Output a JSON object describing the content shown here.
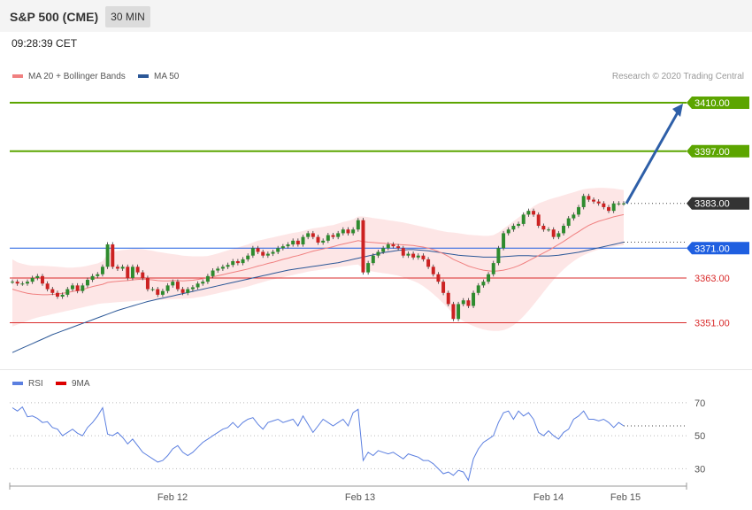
{
  "header": {
    "title": "S&P 500 (CME)",
    "timeframe": "30 MIN"
  },
  "timestamp": "09:28:39 CET",
  "legend": {
    "ma20_label": "MA 20 + Bollinger Bands",
    "ma50_label": "MA 50",
    "rsi_label": "RSI",
    "ma9_label": "9MA"
  },
  "copyright": "Research © 2020 Trading Central",
  "colors": {
    "ma20": "#f08080",
    "ma50": "#2b5797",
    "band_fill": "#fde2e2",
    "up": "#2e8b2e",
    "down": "#cc2222",
    "target": "#5ca500",
    "pivot": "#1f5fe0",
    "support": "#d92b2b",
    "current": "#333333",
    "rsi": "#5b7fe0",
    "rsi_ma": "#dd0000",
    "arrow": "#2e5fa8"
  },
  "chart_data": [
    {
      "type": "candlestick",
      "title": "S&P 500 (CME)",
      "interval": "30 MIN",
      "x_tick_labels": [
        "Feb 12",
        "Feb 13",
        "Feb 14",
        "Feb 15"
      ],
      "ylim": [
        3339,
        3415
      ],
      "levels": [
        {
          "value": 3410.0,
          "label": "3410.00",
          "role": "target"
        },
        {
          "value": 3397.0,
          "label": "3397.00",
          "role": "target"
        },
        {
          "value": 3383.0,
          "label": "3383.00",
          "role": "last"
        },
        {
          "value": 3371.0,
          "label": "3371.00",
          "role": "pivot"
        },
        {
          "value": 3363.0,
          "label": "3363.00",
          "role": "support"
        },
        {
          "value": 3351.0,
          "label": "3351.00",
          "role": "support"
        }
      ],
      "closes": [
        3362.0,
        3361.5,
        3361.5,
        3362.0,
        3363.0,
        3363.5,
        3361.5,
        3360.0,
        3359.0,
        3358.0,
        3358.5,
        3360.0,
        3361.0,
        3359.5,
        3361.0,
        3362.5,
        3363.5,
        3364.0,
        3366.0,
        3372.0,
        3366.0,
        3365.5,
        3366.0,
        3363.0,
        3366.0,
        3364.5,
        3363.0,
        3360.0,
        3360.0,
        3358.5,
        3359.5,
        3361.0,
        3362.0,
        3360.0,
        3359.0,
        3360.0,
        3360.5,
        3361.5,
        3362.0,
        3363.5,
        3365.0,
        3365.5,
        3366.0,
        3366.5,
        3367.5,
        3367.0,
        3368.0,
        3369.0,
        3371.0,
        3370.0,
        3369.0,
        3369.5,
        3370.0,
        3371.0,
        3371.5,
        3372.0,
        3373.0,
        3372.0,
        3374.0,
        3375.0,
        3374.0,
        3372.5,
        3373.0,
        3374.5,
        3374.0,
        3375.0,
        3376.0,
        3375.0,
        3376.0,
        3378.5,
        3364.5,
        3367.0,
        3369.0,
        3370.0,
        3371.0,
        3372.0,
        3371.5,
        3371.0,
        3369.0,
        3369.5,
        3368.5,
        3369.0,
        3368.0,
        3366.0,
        3364.0,
        3362.0,
        3359.0,
        3356.0,
        3352.0,
        3356.0,
        3357.0,
        3355.5,
        3359.0,
        3361.0,
        3362.0,
        3364.0,
        3367.0,
        3371.0,
        3375.0,
        3376.0,
        3377.0,
        3377.5,
        3380.0,
        3381.0,
        3380.0,
        3377.0,
        3376.0,
        3376.0,
        3374.0,
        3375.0,
        3377.0,
        3379.0,
        3380.0,
        3382.0,
        3385.0,
        3384.0,
        3383.5,
        3383.0,
        3382.0,
        3381.0,
        3383.0,
        3383.0,
        3383.0
      ],
      "ma20": [
        3360.0,
        3359.6,
        3359.2,
        3358.9,
        3358.7,
        3358.6,
        3358.5,
        3358.5,
        3358.6,
        3358.7,
        3358.9,
        3359.1,
        3359.4,
        3359.6,
        3359.9,
        3360.3,
        3360.7,
        3361.0,
        3361.3,
        3361.8,
        3362.0,
        3362.1,
        3362.2,
        3362.3,
        3362.5,
        3362.6,
        3362.7,
        3362.6,
        3362.5,
        3362.3,
        3362.2,
        3362.2,
        3362.3,
        3362.3,
        3362.2,
        3362.3,
        3362.4,
        3362.6,
        3362.8,
        3363.0,
        3363.3,
        3363.6,
        3363.9,
        3364.2,
        3364.5,
        3364.8,
        3365.1,
        3365.4,
        3365.8,
        3366.2,
        3366.5,
        3366.9,
        3367.2,
        3367.6,
        3368.0,
        3368.3,
        3368.7,
        3369.0,
        3369.4,
        3369.8,
        3370.2,
        3370.5,
        3370.8,
        3371.1,
        3371.4,
        3371.8,
        3372.1,
        3372.4,
        3372.7,
        3373.0,
        3372.8,
        3372.6,
        3372.5,
        3372.4,
        3372.3,
        3372.2,
        3372.1,
        3372.0,
        3371.9,
        3371.8,
        3371.7,
        3371.5,
        3371.3,
        3371.0,
        3370.6,
        3370.1,
        3369.5,
        3368.8,
        3368.0,
        3367.4,
        3366.8,
        3366.2,
        3365.8,
        3365.4,
        3365.1,
        3364.9,
        3364.8,
        3364.9,
        3365.1,
        3365.4,
        3365.8,
        3366.3,
        3366.9,
        3367.6,
        3368.3,
        3369.0,
        3369.7,
        3370.4,
        3371.2,
        3372.0,
        3372.8,
        3373.7,
        3374.6,
        3375.4,
        3376.3,
        3377.1,
        3377.7,
        3378.2,
        3378.6,
        3379.0,
        3379.4,
        3379.7,
        3380.0
      ],
      "band_upper": [
        3368.0,
        3367.2,
        3366.8,
        3366.5,
        3366.3,
        3366.3,
        3366.3,
        3366.2,
        3366.1,
        3366.0,
        3365.9,
        3365.8,
        3365.8,
        3365.9,
        3366.0,
        3366.3,
        3366.6,
        3366.9,
        3367.5,
        3369.5,
        3370.0,
        3370.3,
        3370.5,
        3370.6,
        3370.8,
        3370.8,
        3370.7,
        3370.5,
        3370.3,
        3370.0,
        3369.8,
        3369.6,
        3369.4,
        3369.2,
        3369.0,
        3368.9,
        3368.8,
        3368.8,
        3368.8,
        3368.9,
        3369.2,
        3369.6,
        3370.0,
        3370.4,
        3370.8,
        3371.2,
        3371.6,
        3372.0,
        3372.5,
        3373.0,
        3373.3,
        3373.6,
        3373.9,
        3374.2,
        3374.5,
        3374.8,
        3375.1,
        3375.3,
        3375.6,
        3376.0,
        3376.3,
        3376.5,
        3376.7,
        3377.0,
        3377.2,
        3377.6,
        3378.0,
        3378.3,
        3378.7,
        3379.5,
        3379.5,
        3379.3,
        3379.1,
        3378.9,
        3378.7,
        3378.5,
        3378.3,
        3378.1,
        3377.9,
        3377.6,
        3377.3,
        3377.0,
        3376.7,
        3376.4,
        3376.1,
        3375.8,
        3375.5,
        3375.3,
        3375.2,
        3375.0,
        3374.8,
        3374.6,
        3374.5,
        3374.4,
        3374.3,
        3374.3,
        3374.5,
        3375.2,
        3376.2,
        3377.2,
        3378.2,
        3379.2,
        3380.2,
        3381.2,
        3382.2,
        3383.0,
        3383.5,
        3384.0,
        3384.4,
        3384.8,
        3385.2,
        3385.6,
        3386.0,
        3386.4,
        3386.8,
        3387.0,
        3387.1,
        3387.2,
        3387.2,
        3387.1,
        3387.0,
        3386.8,
        3386.6
      ],
      "band_lower": [
        3350.0,
        3350.5,
        3351.0,
        3351.5,
        3352.0,
        3352.4,
        3352.7,
        3353.0,
        3353.3,
        3353.6,
        3353.9,
        3354.2,
        3354.5,
        3354.8,
        3355.1,
        3355.4,
        3355.7,
        3356.0,
        3356.2,
        3356.3,
        3356.4,
        3356.5,
        3356.6,
        3356.7,
        3356.8,
        3356.9,
        3357.0,
        3357.1,
        3357.2,
        3357.2,
        3357.2,
        3357.2,
        3357.3,
        3357.4,
        3357.4,
        3357.5,
        3357.6,
        3357.8,
        3358.0,
        3358.3,
        3358.6,
        3358.9,
        3359.2,
        3359.5,
        3359.8,
        3360.1,
        3360.4,
        3360.7,
        3361.1,
        3361.5,
        3361.9,
        3362.3,
        3362.6,
        3362.9,
        3363.2,
        3363.5,
        3363.8,
        3364.1,
        3364.4,
        3364.7,
        3364.9,
        3365.1,
        3365.3,
        3365.5,
        3365.7,
        3365.9,
        3366.1,
        3366.3,
        3366.5,
        3366.6,
        3365.5,
        3365.0,
        3364.7,
        3364.5,
        3364.3,
        3364.1,
        3363.9,
        3363.6,
        3363.2,
        3362.7,
        3362.2,
        3361.6,
        3360.8,
        3359.8,
        3358.7,
        3357.5,
        3356.2,
        3354.8,
        3353.4,
        3352.3,
        3351.4,
        3350.7,
        3350.1,
        3349.6,
        3349.2,
        3348.9,
        3348.8,
        3348.8,
        3349.0,
        3349.5,
        3350.3,
        3351.4,
        3352.7,
        3354.2,
        3355.8,
        3357.5,
        3359.2,
        3360.9,
        3362.5,
        3364.0,
        3365.3,
        3366.5,
        3367.5,
        3368.4,
        3369.1,
        3369.7,
        3370.2,
        3370.6,
        3370.9,
        3371.2,
        3371.4,
        3371.6,
        3371.8
      ],
      "ma50": [
        3343.0,
        3343.6,
        3344.2,
        3344.8,
        3345.4,
        3346.0,
        3346.6,
        3347.2,
        3347.8,
        3348.3,
        3348.8,
        3349.3,
        3349.8,
        3350.3,
        3350.8,
        3351.3,
        3351.8,
        3352.3,
        3352.8,
        3353.3,
        3353.8,
        3354.3,
        3354.7,
        3355.1,
        3355.5,
        3355.9,
        3356.3,
        3356.7,
        3357.0,
        3357.3,
        3357.6,
        3357.9,
        3358.2,
        3358.5,
        3358.8,
        3359.1,
        3359.4,
        3359.7,
        3360.0,
        3360.3,
        3360.6,
        3360.9,
        3361.2,
        3361.5,
        3361.8,
        3362.1,
        3362.4,
        3362.7,
        3363.0,
        3363.3,
        3363.6,
        3363.9,
        3364.2,
        3364.5,
        3364.8,
        3365.1,
        3365.3,
        3365.5,
        3365.7,
        3365.9,
        3366.1,
        3366.3,
        3366.5,
        3366.7,
        3366.9,
        3367.1,
        3367.4,
        3367.7,
        3368.0,
        3368.3,
        3368.6,
        3368.9,
        3369.2,
        3369.5,
        3369.8,
        3370.0,
        3370.2,
        3370.4,
        3370.5,
        3370.6,
        3370.6,
        3370.5,
        3370.4,
        3370.3,
        3370.1,
        3369.9,
        3369.7,
        3369.5,
        3369.3,
        3369.1,
        3369.0,
        3368.9,
        3368.8,
        3368.7,
        3368.6,
        3368.6,
        3368.6,
        3368.6,
        3368.7,
        3368.8,
        3368.9,
        3369.0,
        3369.0,
        3369.0,
        3368.9,
        3368.9,
        3368.9,
        3368.9,
        3369.0,
        3369.1,
        3369.3,
        3369.5,
        3369.7,
        3369.9,
        3370.2,
        3370.5,
        3370.8,
        3371.1,
        3371.4,
        3371.7,
        3372.0,
        3372.3,
        3372.6
      ],
      "forecast_arrow": {
        "from": 3383.0,
        "to": 3410.0
      }
    },
    {
      "type": "line",
      "series_names": [
        "RSI",
        "9MA"
      ],
      "ylim": [
        20,
        78
      ],
      "y_tick_labels": [
        "70",
        "50",
        "30"
      ],
      "rsi": [
        67.0,
        65.0,
        67.5,
        61.5,
        62.0,
        60.5,
        58.0,
        58.5,
        55.0,
        54.0,
        50.0,
        52.0,
        54.0,
        51.5,
        50.0,
        55.0,
        58.0,
        62.0,
        67.0,
        51.0,
        50.0,
        52.0,
        49.0,
        45.0,
        48.0,
        44.0,
        40.0,
        38.0,
        36.0,
        34.0,
        35.0,
        38.0,
        42.0,
        44.0,
        40.0,
        38.0,
        40.0,
        43.0,
        46.0,
        48.0,
        50.0,
        52.0,
        54.0,
        55.0,
        58.0,
        55.0,
        58.0,
        60.0,
        61.0,
        57.0,
        54.0,
        58.0,
        59.0,
        60.0,
        58.0,
        59.0,
        60.0,
        56.0,
        62.0,
        57.0,
        52.0,
        56.0,
        60.0,
        58.0,
        56.0,
        58.0,
        60.0,
        56.0,
        64.0,
        66.0,
        35.0,
        40.0,
        38.0,
        41.0,
        40.0,
        39.0,
        40.0,
        38.0,
        36.0,
        39.0,
        38.0,
        37.0,
        35.0,
        35.0,
        33.0,
        30.0,
        27.0,
        28.0,
        26.0,
        29.0,
        28.0,
        23.0,
        36.0,
        42.0,
        46.0,
        48.0,
        50.0,
        58.0,
        64.0,
        65.0,
        60.0,
        65.0,
        62.0,
        64.0,
        60.0,
        52.0,
        50.0,
        53.0,
        50.0,
        48.0,
        52.0,
        54.0,
        60.0,
        62.0,
        65.0,
        60.0,
        60.0,
        59.0,
        60.0,
        58.0,
        55.0,
        58.0,
        56.0
      ],
      "rsi_last": 56.0
    }
  ]
}
